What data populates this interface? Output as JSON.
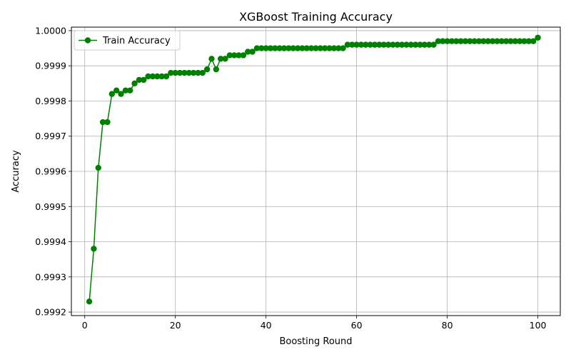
{
  "chart_data": {
    "type": "line",
    "title": "XGBoost Training Accuracy",
    "xlabel": "Boosting Round",
    "ylabel": "Accuracy",
    "xlim": [
      -2.95,
      104.95
    ],
    "ylim": [
      0.99919,
      1.00001
    ],
    "xticks": [
      0,
      20,
      40,
      60,
      80,
      100
    ],
    "xtick_labels": [
      "0",
      "20",
      "40",
      "60",
      "80",
      "100"
    ],
    "yticks": [
      0.9992,
      0.9993,
      0.9994,
      0.9995,
      0.9996,
      0.9997,
      0.9998,
      0.9999,
      1.0
    ],
    "ytick_labels": [
      "0.9992",
      "0.9993",
      "0.9994",
      "0.9995",
      "0.9996",
      "0.9997",
      "0.9998",
      "0.9999",
      "1.0000"
    ],
    "grid": true,
    "legend_position": "top-left",
    "series": [
      {
        "name": "Train Accuracy",
        "color": "#008000",
        "marker": "circle",
        "x": [
          1,
          2,
          3,
          4,
          5,
          6,
          7,
          8,
          9,
          10,
          11,
          12,
          13,
          14,
          15,
          16,
          17,
          18,
          19,
          20,
          21,
          22,
          23,
          24,
          25,
          26,
          27,
          28,
          29,
          30,
          31,
          32,
          33,
          34,
          35,
          36,
          37,
          38,
          39,
          40,
          41,
          42,
          43,
          44,
          45,
          46,
          47,
          48,
          49,
          50,
          51,
          52,
          53,
          54,
          55,
          56,
          57,
          58,
          59,
          60,
          61,
          62,
          63,
          64,
          65,
          66,
          67,
          68,
          69,
          70,
          71,
          72,
          73,
          74,
          75,
          76,
          77,
          78,
          79,
          80,
          81,
          82,
          83,
          84,
          85,
          86,
          87,
          88,
          89,
          90,
          91,
          92,
          93,
          94,
          95,
          96,
          97,
          98,
          99,
          100
        ],
        "values": [
          0.99923,
          0.99938,
          0.99961,
          0.99974,
          0.99974,
          0.99982,
          0.99983,
          0.99982,
          0.99983,
          0.99983,
          0.99985,
          0.99986,
          0.99986,
          0.99987,
          0.99987,
          0.99987,
          0.99987,
          0.99987,
          0.99988,
          0.99988,
          0.99988,
          0.99988,
          0.99988,
          0.99988,
          0.99988,
          0.99988,
          0.99989,
          0.99992,
          0.99989,
          0.99992,
          0.99992,
          0.99993,
          0.99993,
          0.99993,
          0.99993,
          0.99994,
          0.99994,
          0.99995,
          0.99995,
          0.99995,
          0.99995,
          0.99995,
          0.99995,
          0.99995,
          0.99995,
          0.99995,
          0.99995,
          0.99995,
          0.99995,
          0.99995,
          0.99995,
          0.99995,
          0.99995,
          0.99995,
          0.99995,
          0.99995,
          0.99995,
          0.99996,
          0.99996,
          0.99996,
          0.99996,
          0.99996,
          0.99996,
          0.99996,
          0.99996,
          0.99996,
          0.99996,
          0.99996,
          0.99996,
          0.99996,
          0.99996,
          0.99996,
          0.99996,
          0.99996,
          0.99996,
          0.99996,
          0.99996,
          0.99997,
          0.99997,
          0.99997,
          0.99997,
          0.99997,
          0.99997,
          0.99997,
          0.99997,
          0.99997,
          0.99997,
          0.99997,
          0.99997,
          0.99997,
          0.99997,
          0.99997,
          0.99997,
          0.99997,
          0.99997,
          0.99997,
          0.99997,
          0.99997,
          0.99997,
          0.99998
        ]
      }
    ]
  }
}
